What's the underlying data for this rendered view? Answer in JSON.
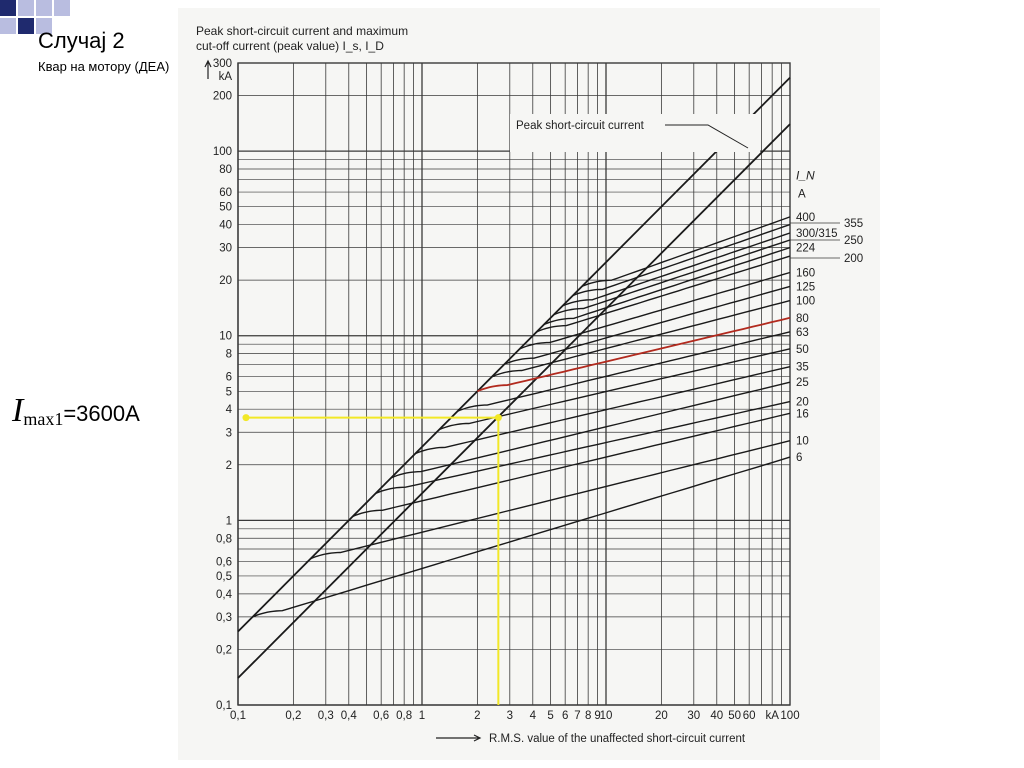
{
  "slide": {
    "title": "Случај 2",
    "subtitle": "Квар на мотору (ДЕА)",
    "result_symbol": "I",
    "result_subscript": "max1",
    "result_value": "=3600A"
  },
  "colors": {
    "decor_dark": "#1f2a6e",
    "decor_light": "#b9bde0",
    "grid": "#3a3a3a",
    "curve": "#1a1a1a",
    "highlight_curve": "#b22a1e",
    "guide": "#f2e826",
    "panel": "#f6f6f4"
  },
  "chart_data": {
    "type": "line",
    "title": "Peak short-circuit current and maximum cut-off current (peak value) I_s, I_D",
    "title_line1": "Peak short-circuit current and maximum",
    "title_line2": "cut-off current (peak value) I_s, I_D",
    "xlabel": "R.M.S. value of the unaffected short-circuit current",
    "ylabel": "",
    "y_unit": "kA",
    "x_unit": "kA",
    "x_scale": "log",
    "y_scale": "log",
    "xlim": [
      0.1,
      100
    ],
    "ylim": [
      0.1,
      300
    ],
    "x_tick_labels": [
      "0,1",
      "0,2",
      "0,3",
      "0,4",
      "0,6",
      "0,8",
      "1",
      "2",
      "3",
      "4",
      "5",
      "6",
      "7",
      "8",
      "9",
      "10",
      "20",
      "30",
      "40",
      "50",
      "60",
      "kA",
      "100"
    ],
    "x_tick_values": [
      0.1,
      0.2,
      0.3,
      0.4,
      0.6,
      0.8,
      1,
      2,
      3,
      4,
      5,
      6,
      7,
      8,
      9,
      10,
      20,
      30,
      40,
      50,
      60,
      80,
      100
    ],
    "y_tick_labels": [
      "300",
      "200",
      "100",
      "80",
      "60",
      "50",
      "40",
      "30",
      "20",
      "10",
      "8",
      "6",
      "5",
      "4",
      "3",
      "2",
      "1",
      "0,8",
      "0,6",
      "0,5",
      "0,4",
      "0,3",
      "0,2",
      "0,1"
    ],
    "y_tick_values": [
      300,
      200,
      100,
      80,
      60,
      50,
      40,
      30,
      20,
      10,
      8,
      6,
      5,
      4,
      3,
      2,
      1,
      0.8,
      0.6,
      0.5,
      0.4,
      0.3,
      0.2,
      0.1
    ],
    "legend_header_symbol": "I_N",
    "legend_header_unit": "A",
    "annotation": "Peak short-circuit current",
    "grid": true,
    "peak_lines": [
      {
        "x": [
          0.1,
          100
        ],
        "y": [
          0.25,
          250
        ]
      },
      {
        "x": [
          0.1,
          100
        ],
        "y": [
          0.14,
          140
        ]
      }
    ],
    "fuse_curves": [
      {
        "name": "400",
        "start_y": 18.5,
        "end_y": 44
      },
      {
        "name": "355",
        "start_y": 16.5,
        "end_y": 40
      },
      {
        "name": "300/315",
        "start_y": 14.5,
        "end_y": 36
      },
      {
        "name": "250",
        "start_y": 13,
        "end_y": 33
      },
      {
        "name": "224",
        "start_y": 11.5,
        "end_y": 30
      },
      {
        "name": "200",
        "start_y": 10.5,
        "end_y": 27
      },
      {
        "name": "160",
        "start_y": 8.5,
        "end_y": 22
      },
      {
        "name": "125",
        "start_y": 7,
        "end_y": 18.5
      },
      {
        "name": "100",
        "start_y": 6,
        "end_y": 15.5
      },
      {
        "name": "80",
        "start_y": 5,
        "end_y": 12.5
      },
      {
        "name": "63",
        "start_y": 3.9,
        "end_y": 10.5
      },
      {
        "name": "50",
        "start_y": 3.1,
        "end_y": 8.5
      },
      {
        "name": "35",
        "start_y": 2.3,
        "end_y": 6.8
      },
      {
        "name": "25",
        "start_y": 1.7,
        "end_y": 5.6
      },
      {
        "name": "20",
        "start_y": 1.4,
        "end_y": 4.4
      },
      {
        "name": "16",
        "start_y": 1.05,
        "end_y": 3.8
      },
      {
        "name": "10",
        "start_y": 0.62,
        "end_y": 2.7
      },
      {
        "name": "6",
        "start_y": 0.3,
        "end_y": 2.2
      }
    ],
    "highlight": {
      "curve": "80",
      "x": 2.6,
      "y": 3.6
    }
  }
}
